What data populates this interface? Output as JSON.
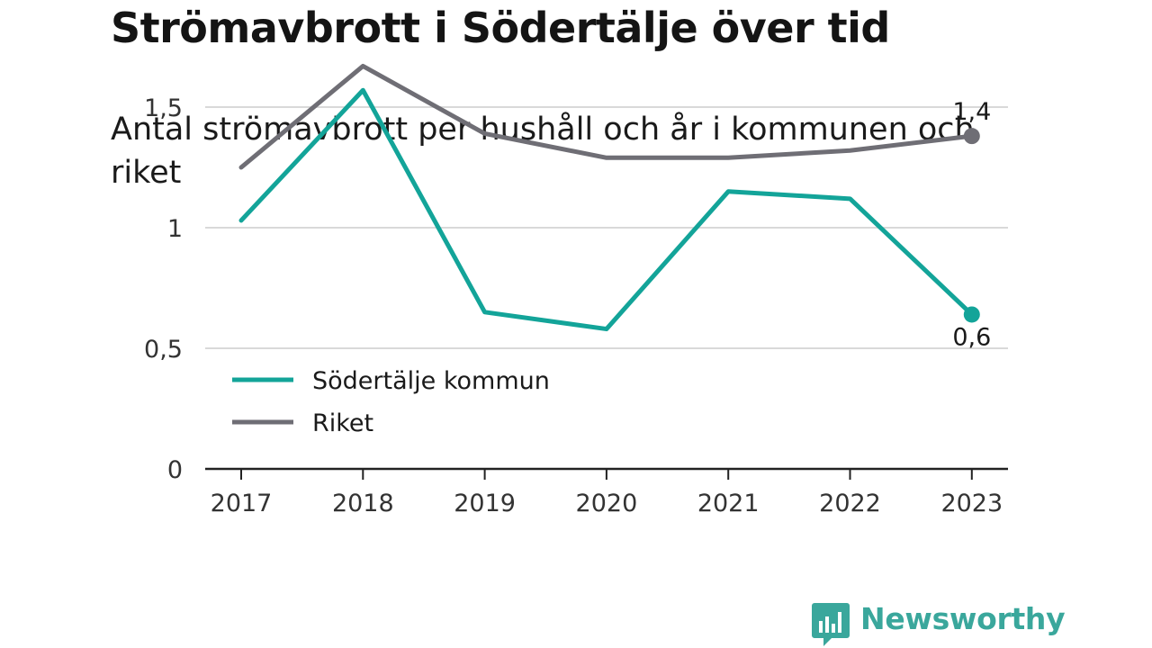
{
  "header": {
    "title": "Strömavbrott i Södertälje över tid",
    "subtitle": "Antal strömavbrott per hushåll och år i kommunen och riket"
  },
  "brand": {
    "name": "Newsworthy",
    "color": "#3aa79c"
  },
  "chart_data": {
    "type": "line",
    "categories": [
      "2017",
      "2018",
      "2019",
      "2020",
      "2021",
      "2022",
      "2023"
    ],
    "series": [
      {
        "name": "Södertälje kommun",
        "color": "#13a499",
        "values": [
          1.03,
          1.57,
          0.65,
          0.58,
          1.15,
          1.12,
          0.64
        ]
      },
      {
        "name": "Riket",
        "color": "#6f6e75",
        "values": [
          1.25,
          1.67,
          1.39,
          1.29,
          1.29,
          1.32,
          1.38
        ]
      }
    ],
    "yticks": [
      0,
      0.5,
      1,
      1.5
    ],
    "ytick_labels": [
      "0",
      "0,5",
      "1",
      "1,5"
    ],
    "ylim": [
      0,
      1.75
    ],
    "end_labels": [
      "0,6",
      "1,4"
    ],
    "grid": true,
    "legend_position": "lower-left",
    "xlabel": "",
    "ylabel": ""
  }
}
